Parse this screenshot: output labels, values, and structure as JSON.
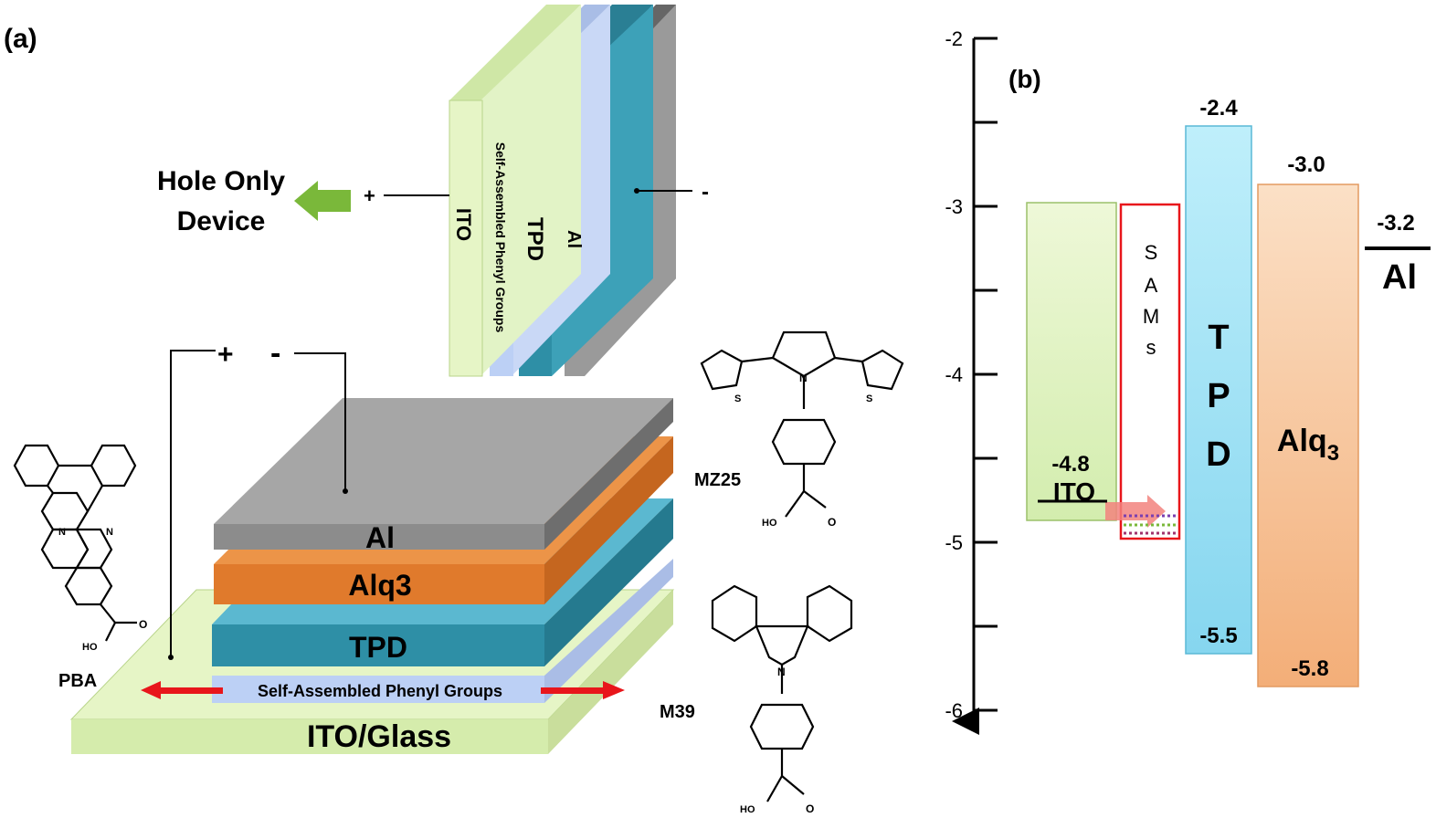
{
  "panel_a": {
    "label": "(a)",
    "hole_only": {
      "title_line1": "Hole Only",
      "title_line2": "Device",
      "plus": "+",
      "minus": "-",
      "layers": {
        "ito": "ITO",
        "sam": "Self-Assembled Phenyl Groups",
        "tpd": "TPD",
        "al": "Al"
      }
    },
    "stack": {
      "plus": "+",
      "minus": "-",
      "layers": {
        "al": "Al",
        "alq3": "Alq3",
        "tpd": "TPD",
        "sam": "Self-Assembled Phenyl Groups",
        "ito_glass": "ITO/Glass"
      }
    },
    "molecules": {
      "pba": "PBA",
      "mz25": "MZ25",
      "m39": "M39",
      "ho": "HO",
      "n": "N",
      "s": "S",
      "o": "O"
    }
  },
  "panel_b": {
    "label": "(b)",
    "axis_ticks": [
      "-2",
      "-3",
      "-4",
      "-5",
      "-6"
    ],
    "levels": {
      "ito_value": "-4.8",
      "ito_name": "ITO",
      "sams_letters": [
        "S",
        "A",
        "M",
        "s"
      ],
      "tpd_letters": [
        "T",
        "P",
        "D"
      ],
      "tpd_lumo": "-2.4",
      "tpd_homo": "-5.5",
      "alq3_name": "Alq",
      "alq3_sub": "3",
      "alq3_lumo": "-3.0",
      "alq3_homo": "-5.8",
      "al_value": "-3.2",
      "al_name": "Al"
    }
  },
  "colors": {
    "ito": "#e6f5c6",
    "sam": "#bcd0f5",
    "tpd": "#2e8fa6",
    "al": "#8c8c8c",
    "alq3": "#e07a2c",
    "arrow_red": "#e8161b",
    "arrow_green": "#7ab83a"
  }
}
